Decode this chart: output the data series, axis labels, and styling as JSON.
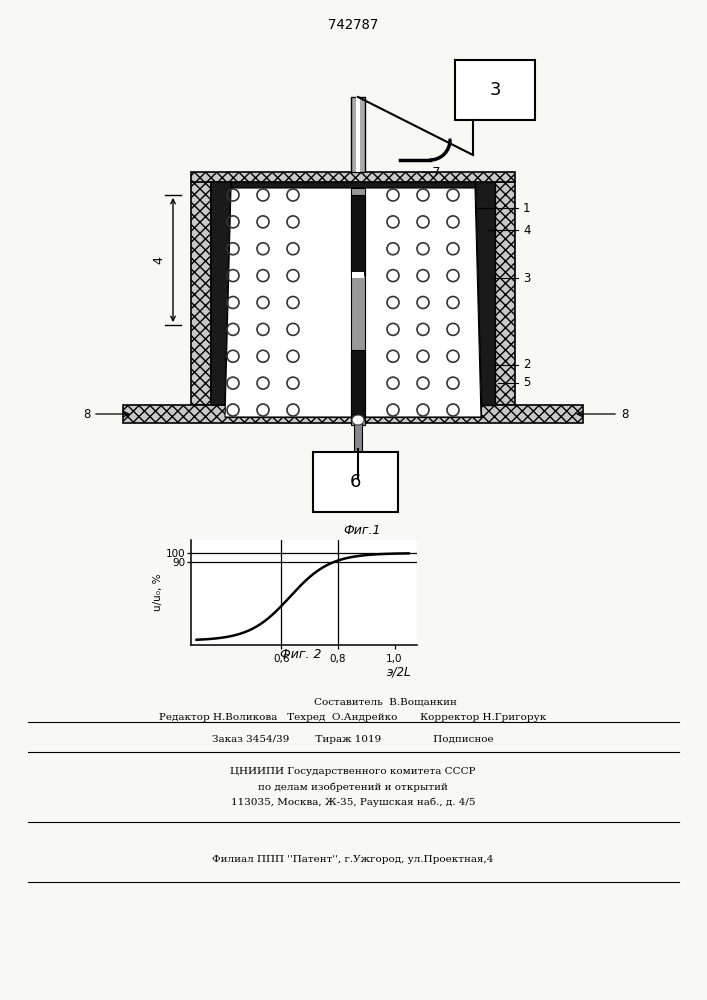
{
  "patent_number": "742787",
  "bg_color": "#f8f8f5",
  "fig1_label": "Фиг.1",
  "fig2_label": "Фиг. 2",
  "graph_ylabel": "u/u₀, %",
  "graph_xlabel": "э/2L",
  "footer_line1": "                    Составитель  В.Вощанкин",
  "footer_line2": "Редактор Н.Воликова   Техред  О.Андрейко       Корректор Н.Григорук",
  "footer_line3": "Заказ 3454/39        Тираж 1019                Подписное",
  "footer_line4": "ЦНИИПИ Государственного комитета СССР",
  "footer_line5": "по делам изобретений и открытий",
  "footer_line6": "113035, Москва, Ж-35, Раушская наб., д. 4/5",
  "footer_line7": "Филиал ППП ''Патент'', г.Ужгород, ул.Проектная,4"
}
